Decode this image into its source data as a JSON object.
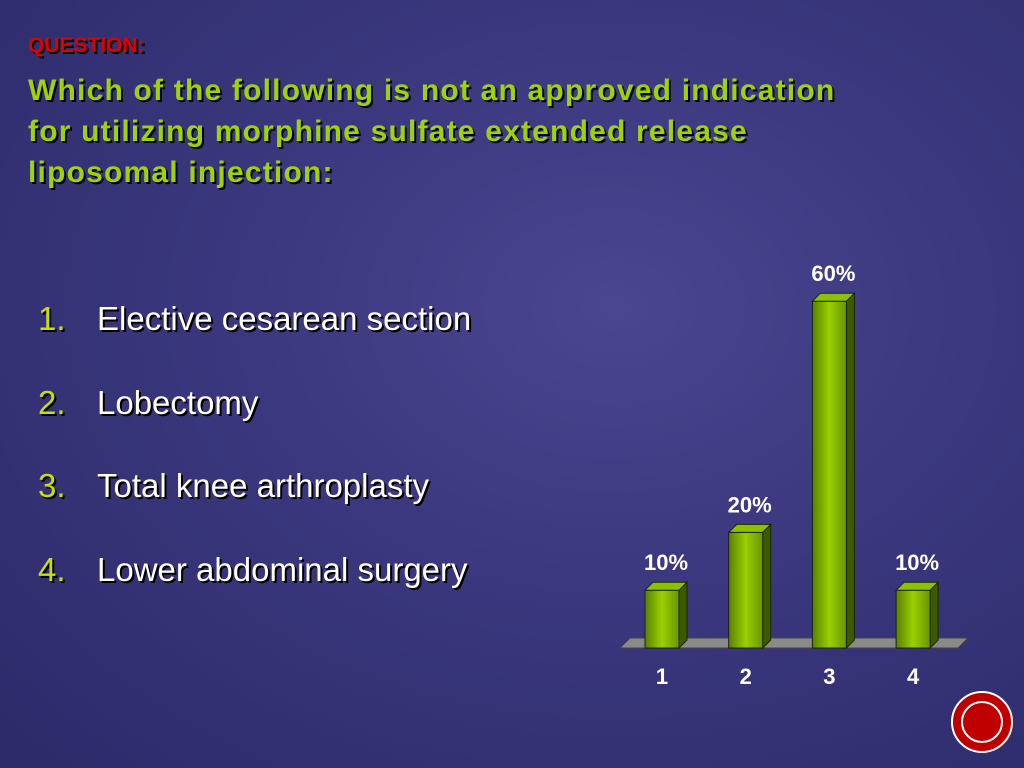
{
  "slide": {
    "label": "QUESTION:",
    "question": [
      "Which of the following is not an approved indication",
      "for utilizing morphine sulfate extended release",
      "liposomal injection:"
    ],
    "options": [
      {
        "number": "1.",
        "text": "Elective cesarean section"
      },
      {
        "number": "2.",
        "text": "Lobectomy"
      },
      {
        "number": "3.",
        "text": "Total knee arthroplasty"
      },
      {
        "number": "4.",
        "text": "Lower abdominal surgery"
      }
    ]
  },
  "chart_data": {
    "type": "bar",
    "categories": [
      "1",
      "2",
      "3",
      "4"
    ],
    "values": [
      10,
      20,
      60,
      10
    ],
    "value_labels": [
      "10%",
      "20%",
      "60%",
      "10%"
    ],
    "color": "#8cc000"
  }
}
